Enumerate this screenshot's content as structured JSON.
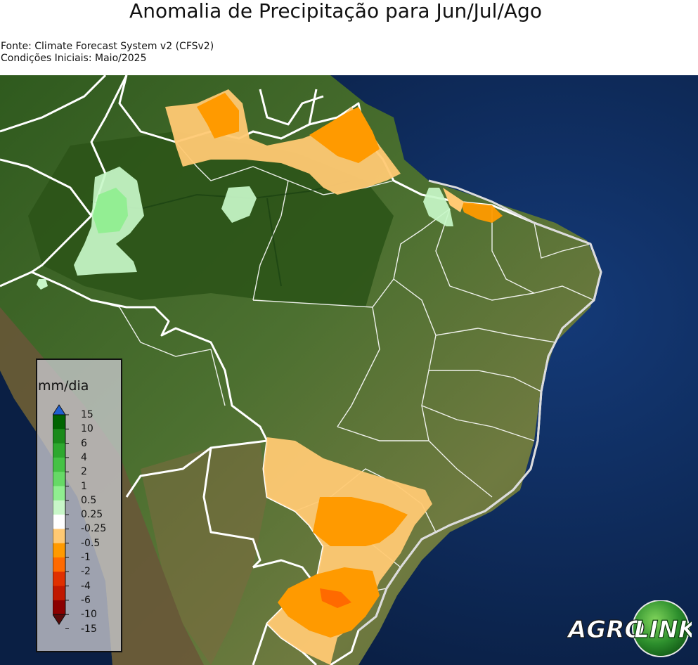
{
  "title": "Anomalia de Precipitação para Jun/Jul/Ago",
  "source_line": "Fonte: Climate Forecast System v2 (CFSv2)",
  "initial_conditions_line": "Condições Iniciais: Maio/2025",
  "legend": {
    "unit": "mm/dia",
    "ticks": [
      "15",
      "10",
      "6",
      "4",
      "2",
      "1",
      "0.5",
      "0.25",
      "-0.25",
      "-0.5",
      "-1",
      "-2",
      "-4",
      "-6",
      "-10",
      "-15"
    ],
    "colors": [
      "#006400",
      "#1a8a1a",
      "#2ea82e",
      "#45c245",
      "#66d966",
      "#90ee90",
      "#c8f7c8",
      "#ffffff",
      "#ffc973",
      "#ff9a00",
      "#ff6a00",
      "#e03000",
      "#c01800",
      "#8b0000"
    ],
    "extend_max_color": "#1f5fd0",
    "extend_min_color": "#5a0a0a"
  },
  "logo": {
    "left_text": "AGRO",
    "right_text": "LINK"
  },
  "colors": {
    "ocean": "#0c2a5a",
    "land_forest": "#3c6a24",
    "land_savanna": "#6e7a3a",
    "andes": "#6a5638",
    "border": "#ffffff",
    "positive_light": "#c8f7c8",
    "positive_mid": "#90ee90",
    "negative_light": "#ffc973",
    "negative_mid": "#ff9a00",
    "negative_strong": "#ff6a00"
  }
}
